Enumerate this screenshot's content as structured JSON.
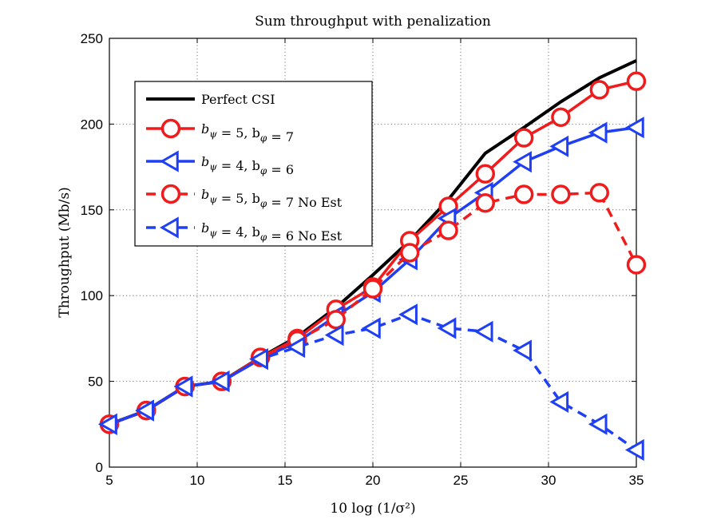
{
  "chart_data": {
    "type": "line",
    "title": "Sum throughput with penalization",
    "xlabel": "10 log (1/σ²)",
    "ylabel": "Throughput (Mb/s)",
    "xlim": [
      5,
      35
    ],
    "ylim": [
      0,
      250
    ],
    "xticks": [
      5,
      10,
      15,
      20,
      25,
      30,
      35
    ],
    "yticks": [
      0,
      50,
      100,
      150,
      200,
      250
    ],
    "xtick_labels": [
      "5",
      "10",
      "15",
      "20",
      "25",
      "30",
      "35"
    ],
    "ytick_labels": [
      "0",
      "50",
      "100",
      "150",
      "200",
      "250"
    ],
    "grid": true,
    "legend_position": "top-left",
    "series": [
      {
        "name": "Perfect CSI",
        "color": "#000000",
        "dash": "solid",
        "marker": "none",
        "x": [
          5,
          7.1,
          9.3,
          11.4,
          13.6,
          15.7,
          17.9,
          20,
          22.1,
          24.3,
          26.4,
          28.6,
          30.7,
          32.9,
          35
        ],
        "y": [
          25,
          33,
          47,
          50,
          64,
          76,
          93,
          112,
          132,
          156,
          183,
          198,
          213,
          227,
          237
        ]
      },
      {
        "name": "b_ψ = 5, b_φ = 7",
        "color": "#ee1c1c",
        "dash": "solid",
        "marker": "circle",
        "x": [
          5,
          7.1,
          9.3,
          11.4,
          13.6,
          15.7,
          17.9,
          20,
          22.1,
          24.3,
          26.4,
          28.6,
          30.7,
          32.9,
          35
        ],
        "y": [
          25,
          33,
          47,
          50,
          64,
          75,
          92,
          105,
          132,
          152,
          171,
          192,
          204,
          220,
          225
        ]
      },
      {
        "name": "b_ψ = 4, b_φ = 6",
        "color": "#1f3ff5",
        "dash": "solid",
        "marker": "triangle-left",
        "x": [
          5,
          7.1,
          9.3,
          11.4,
          13.6,
          15.7,
          17.9,
          20,
          22.1,
          24.3,
          26.4,
          28.6,
          30.7,
          32.9,
          35
        ],
        "y": [
          25,
          33,
          47,
          50,
          63,
          73,
          88,
          102,
          121,
          145,
          160,
          178,
          187,
          195,
          198
        ]
      },
      {
        "name": "b_ψ = 5, b_φ = 7 No Est",
        "color": "#ee1c1c",
        "dash": "dashed",
        "marker": "circle",
        "x": [
          5,
          7.1,
          9.3,
          11.4,
          13.6,
          15.7,
          17.9,
          20,
          22.1,
          24.3,
          26.4,
          28.6,
          30.7,
          32.9,
          35
        ],
        "y": [
          25,
          33,
          47,
          50,
          64,
          74,
          86,
          104,
          125,
          138,
          154,
          159,
          159,
          160,
          118
        ]
      },
      {
        "name": "b_ψ = 4, b_φ = 6 No Est",
        "color": "#1f3ff5",
        "dash": "dashed",
        "marker": "triangle-left",
        "x": [
          5,
          7.1,
          9.3,
          11.4,
          13.6,
          15.7,
          17.9,
          20,
          22.1,
          24.3,
          26.4,
          28.6,
          30.7,
          32.9,
          35
        ],
        "y": [
          25,
          33,
          47,
          50,
          63,
          70,
          77,
          81,
          89,
          81,
          79,
          68,
          38,
          25,
          10
        ]
      }
    ],
    "legend_labels": [
      {
        "sym": "",
        "s1": "",
        "mid": "",
        "s2": "",
        "tail": "Perfect CSI"
      },
      {
        "sym": "b",
        "s1": "ψ",
        "mid": " = 5, b",
        "s2": "φ",
        "tail": " = 7"
      },
      {
        "sym": "b",
        "s1": "ψ",
        "mid": " = 4, b",
        "s2": "φ",
        "tail": " = 6"
      },
      {
        "sym": "b",
        "s1": "ψ",
        "mid": " = 5, b",
        "s2": "φ",
        "tail": " = 7 No Est"
      },
      {
        "sym": "b",
        "s1": "ψ",
        "mid": " = 4, b",
        "s2": "φ",
        "tail": " = 6 No Est"
      }
    ]
  }
}
